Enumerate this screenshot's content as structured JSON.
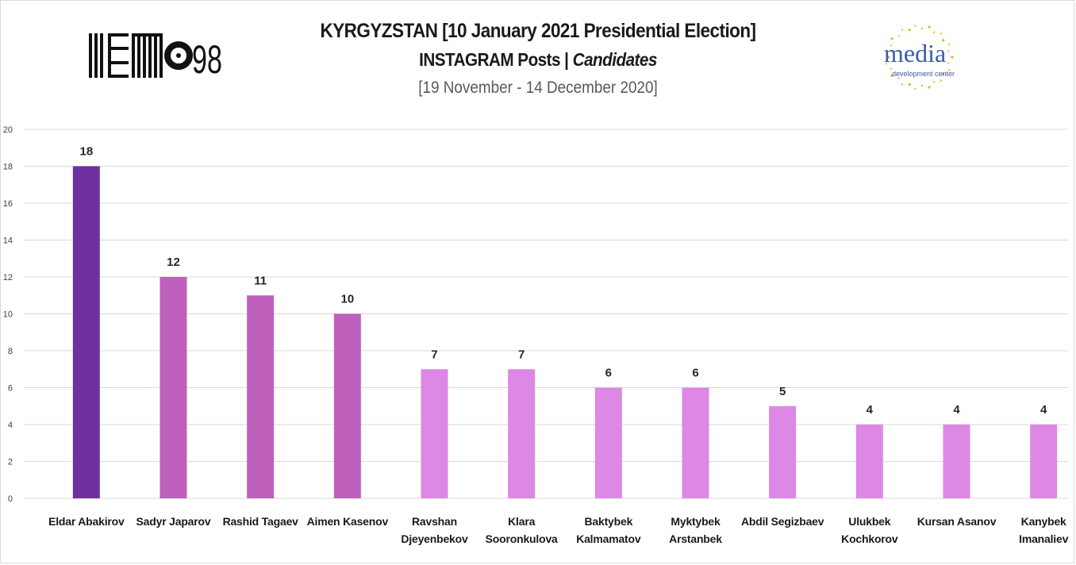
{
  "header": {
    "title_line1": "KYRGYZSTAN [10 January 2021 Presidential Election]",
    "title_line2_main": "INSTAGRAM Posts |",
    "title_line2_italic": "Candidates",
    "subtitle": "[19 November - 14 December 2020]"
  },
  "logos": {
    "left_text": "98",
    "right_text": "media",
    "right_subtext": "development center"
  },
  "colors": {
    "top_bar": "#7030a0",
    "mid_bar": "#c060bd",
    "low_bar": "#dd88e5",
    "grid": "#d9d9d9",
    "logo_media_blue": "#3b5ba9",
    "logo_media_gold": "#e6b619"
  },
  "chart_data": {
    "type": "bar",
    "categories": [
      "Eldar Abakirov",
      "Sadyr Japarov",
      "Rashid Tagaev",
      "Aimen Kasenov",
      "Ravshan Djeyenbekov",
      "Klara Sooronkulova",
      "Baktybek Kalmamatov",
      "Myktybek Arstanbek",
      "Abdil Segizbaev",
      "Ulukbek Kochkorov",
      "Kursan Asanov",
      "Kanybek Imanaliev"
    ],
    "category_label_lines": [
      [
        "Eldar Abakirov"
      ],
      [
        "Sadyr Japarov"
      ],
      [
        "Rashid Tagaev"
      ],
      [
        "Aimen Kasenov"
      ],
      [
        "Ravshan",
        "Djeyenbekov"
      ],
      [
        "Klara",
        "Sooronkulova"
      ],
      [
        "Baktybek",
        "Kalmamatov"
      ],
      [
        "Myktybek",
        "Arstanbek"
      ],
      [
        "Abdil Segizbaev"
      ],
      [
        "Ulukbek",
        "Kochkorov"
      ],
      [
        "Kursan Asanov"
      ],
      [
        "Kanybek",
        "Imanaliev"
      ]
    ],
    "values": [
      18,
      12,
      11,
      10,
      7,
      7,
      6,
      6,
      5,
      4,
      4,
      4
    ],
    "bar_colors": [
      "#7030a0",
      "#c060bd",
      "#c060bd",
      "#c060bd",
      "#dd88e5",
      "#dd88e5",
      "#dd88e5",
      "#dd88e5",
      "#dd88e5",
      "#dd88e5",
      "#dd88e5",
      "#dd88e5"
    ],
    "ylim": [
      0,
      20
    ],
    "yticks": [
      0,
      2,
      4,
      6,
      8,
      10,
      12,
      14,
      16,
      18,
      20
    ],
    "grid": true,
    "legend": "none",
    "data_labels": true
  }
}
